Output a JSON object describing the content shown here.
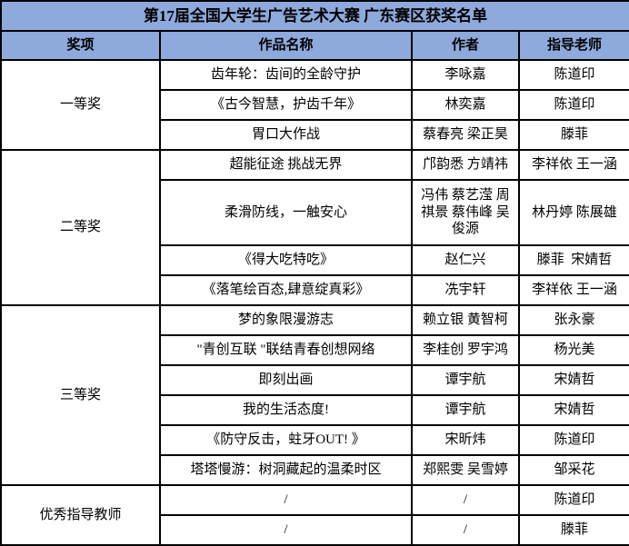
{
  "title": "第17届全国大学生广告艺术大赛 广东赛区获奖名单",
  "columns": [
    "奖项",
    "作品名称",
    "作者",
    "指导老师"
  ],
  "colors": {
    "accent_bg": "#8EA9DB",
    "border": "#000000",
    "body_bg": "#FFFFFF",
    "text": "#000000"
  },
  "groups": [
    {
      "award": "一等奖",
      "rows": [
        {
          "work": "齿年轮：齿间的全龄守护",
          "authors": "李咏嘉",
          "teachers": "陈道印"
        },
        {
          "work": "《古今智慧，护齿千年》",
          "authors": "林奕嘉",
          "teachers": "陈道印"
        },
        {
          "work": "胃口大作战",
          "authors": "蔡春亮 梁正昊",
          "teachers": "滕菲"
        }
      ]
    },
    {
      "award": "二等奖",
      "rows": [
        {
          "work": "超能征途 挑战无界",
          "authors": "邝韵悉 方靖祎",
          "teachers": "李祥依 王一涵"
        },
        {
          "work": "柔滑防线，一触安心",
          "authors": "冯伟 蔡艺滢 周祺景 蔡伟峰 吴俊源",
          "teachers": "林丹婷 陈展雄",
          "tall": true
        },
        {
          "work": "《得大吃特吃》",
          "authors": "赵仁兴",
          "teachers": "滕菲  宋婧哲"
        },
        {
          "work": "《落笔绘百态,肆意绽真彩》",
          "authors": "冼宇轩",
          "teachers": "李祥依 王一涵"
        }
      ]
    },
    {
      "award": "三等奖",
      "rows": [
        {
          "work": "梦的象限漫游志",
          "authors": "赖立银 黄智柯",
          "teachers": "张永豪"
        },
        {
          "work": "\"青创互联 \"联结青春创想网络",
          "authors": "李桂创 罗宇鸿",
          "teachers": "杨光美"
        },
        {
          "work": "即刻出画",
          "authors": "谭宇航",
          "teachers": "宋婧哲"
        },
        {
          "work": "我的生活态度!",
          "authors": "谭宇航",
          "teachers": "宋婧哲"
        },
        {
          "work": "《防守反击，蛀牙OUT! 》",
          "authors": "宋昕炜",
          "teachers": "陈道印"
        },
        {
          "work": "塔塔慢游：树洞藏起的温柔时区",
          "authors": "郑熙雯 吴雪婷",
          "teachers": "邹采花"
        }
      ]
    },
    {
      "award": "优秀指导教师",
      "rows": [
        {
          "work": "/",
          "authors": "/",
          "teachers": "陈道印"
        },
        {
          "work": "/",
          "authors": "/",
          "teachers": "滕菲"
        }
      ]
    }
  ]
}
